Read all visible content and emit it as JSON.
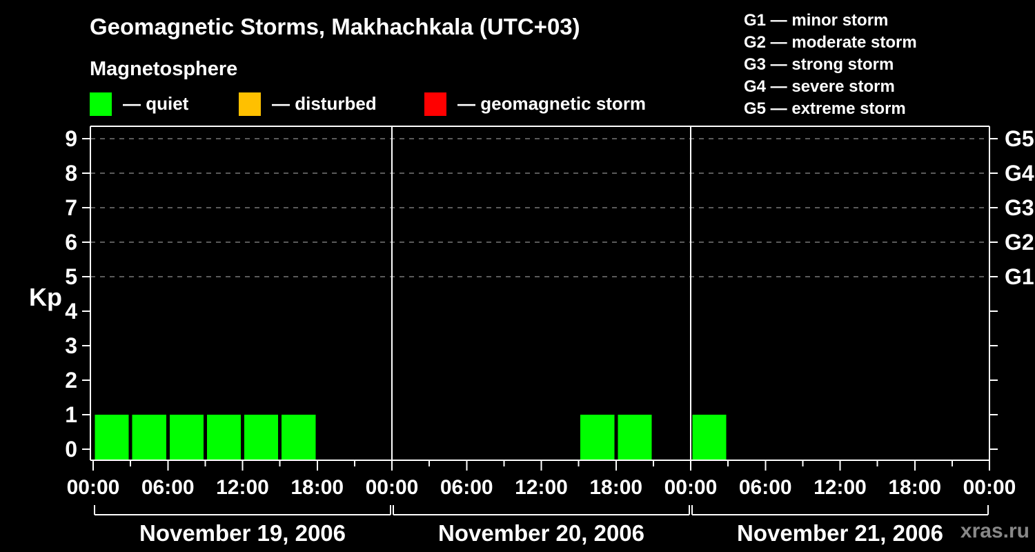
{
  "title": "Geomagnetic Storms, Makhachkala (UTC+03)",
  "subtitle": "Magnetosphere",
  "activity_legend": {
    "items": [
      {
        "name": "quiet",
        "label": "— quiet",
        "color": "#00ff00"
      },
      {
        "name": "disturbed",
        "label": "— disturbed",
        "color": "#ffc000"
      },
      {
        "name": "storm",
        "label": "— geomagnetic storm",
        "color": "#ff0000"
      }
    ]
  },
  "g_scale_legend": {
    "lines": [
      "G1 — minor storm",
      "G2 — moderate storm",
      "G3 — strong storm",
      "G4 — severe storm",
      "G5 — extreme storm"
    ]
  },
  "watermark": "xras.ru",
  "chart_data": {
    "type": "bar",
    "title": "Geomagnetic Storms, Makhachkala (UTC+03)",
    "ylabel": "Kp",
    "ylim": [
      0,
      9
    ],
    "y_ticks": [
      0,
      1,
      2,
      3,
      4,
      5,
      6,
      7,
      8,
      9
    ],
    "grid_levels": [
      5,
      6,
      7,
      8,
      9
    ],
    "right_axis": [
      {
        "kp": 5,
        "label": "G1"
      },
      {
        "kp": 6,
        "label": "G2"
      },
      {
        "kp": 7,
        "label": "G3"
      },
      {
        "kp": 8,
        "label": "G4"
      },
      {
        "kp": 9,
        "label": "G5"
      }
    ],
    "x_tick_labels": [
      "00:00",
      "06:00",
      "12:00",
      "18:00"
    ],
    "hours_per_bar": 3,
    "colors": {
      "quiet": "#00ff00",
      "disturbed": "#ffc000",
      "storm": "#ff0000"
    },
    "days": [
      {
        "date": "November 19, 2006",
        "kp": [
          1,
          1,
          1,
          1,
          1,
          1,
          null,
          null
        ]
      },
      {
        "date": "November 20, 2006",
        "kp": [
          null,
          null,
          null,
          null,
          null,
          1,
          1,
          null
        ]
      },
      {
        "date": "November 21, 2006",
        "kp": [
          1,
          null,
          null,
          null,
          null,
          null,
          null,
          null
        ]
      }
    ]
  }
}
